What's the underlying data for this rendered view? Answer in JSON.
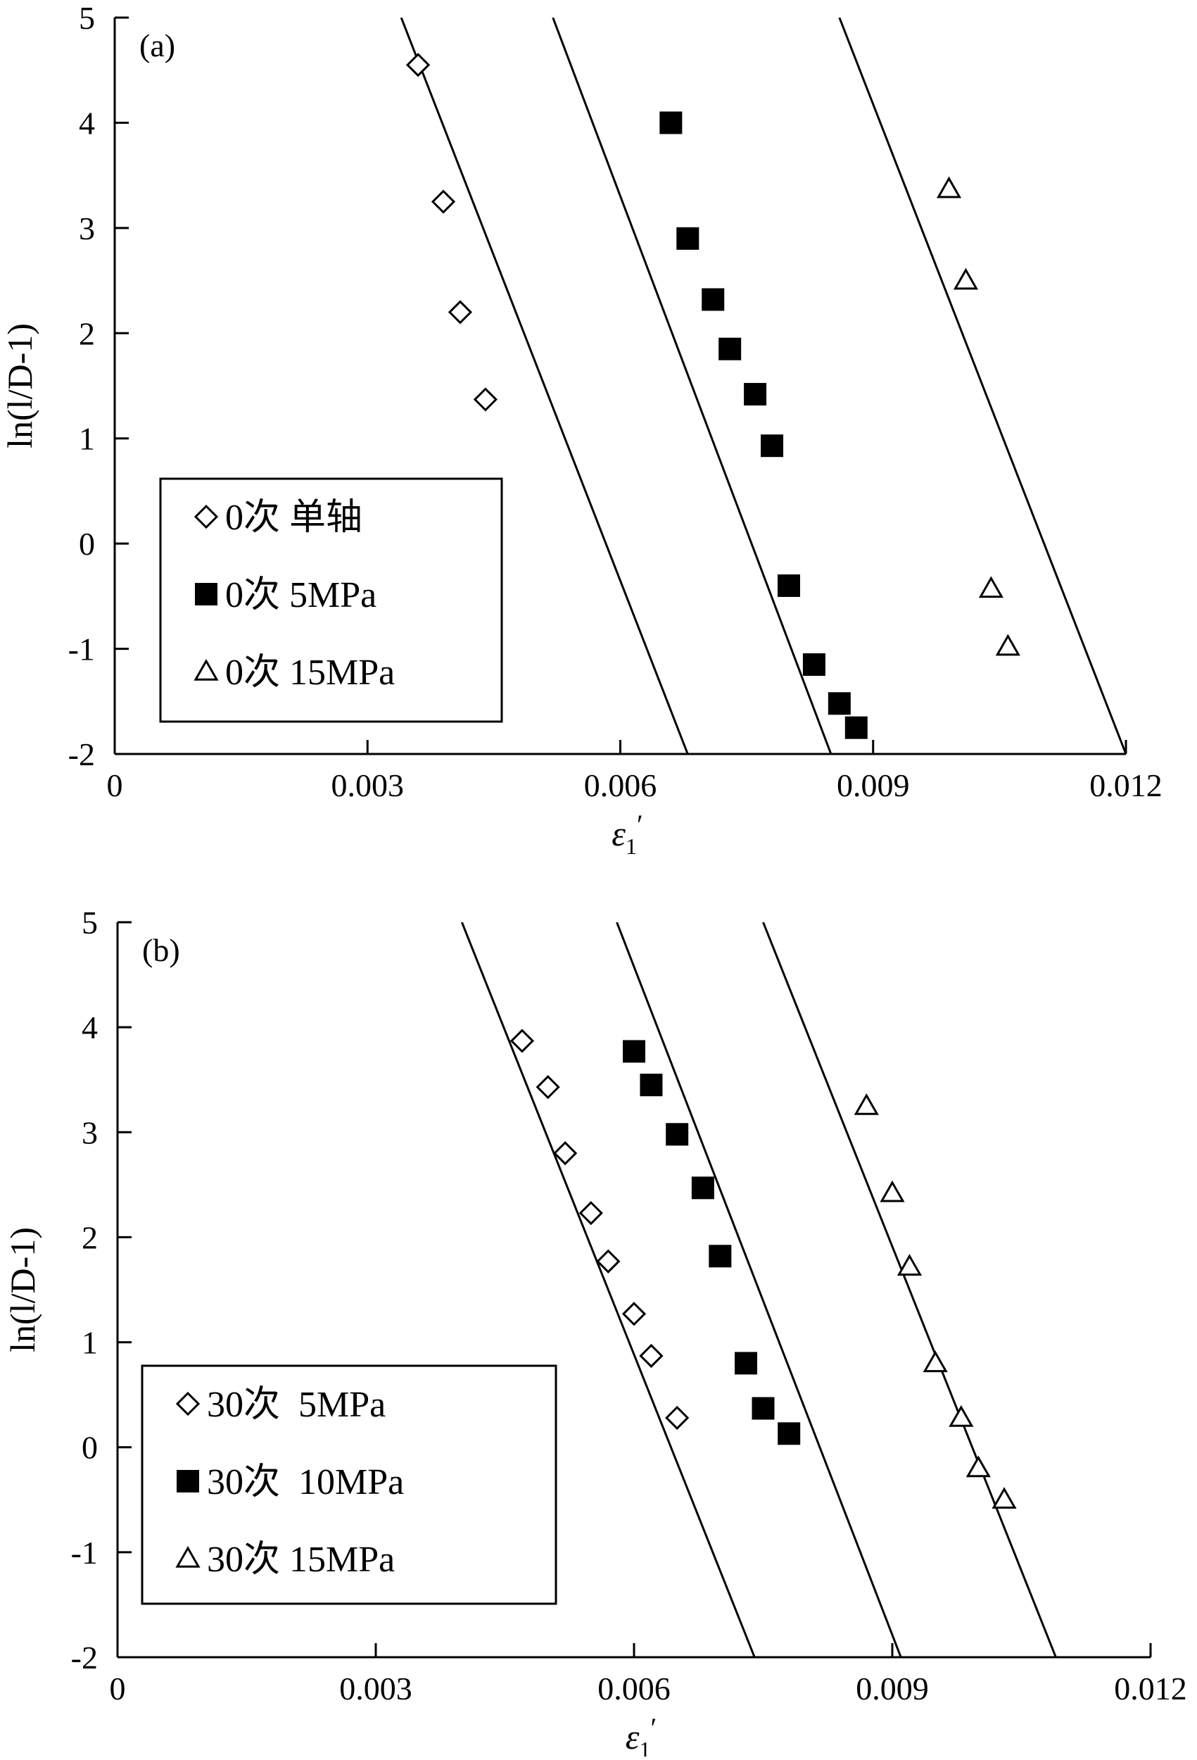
{
  "chart_data": [
    {
      "type": "scatter",
      "panel_label": "(a)",
      "xlabel_symbol": "ε",
      "xlabel_subscript": "1",
      "xlabel_prime": "′",
      "ylabel": "ln(l/D-1)",
      "xlim": [
        0,
        0.012
      ],
      "ylim": [
        -2,
        5
      ],
      "x_ticks": [
        0,
        0.003,
        0.006,
        0.009,
        0.012
      ],
      "x_tick_labels": [
        "0",
        "0.003",
        "0.006",
        "0.009",
        "0.012"
      ],
      "y_ticks": [
        -2,
        -1,
        0,
        1,
        2,
        3,
        4,
        5
      ],
      "y_tick_labels": [
        "-2",
        "-1",
        "0",
        "1",
        "2",
        "3",
        "4",
        "5"
      ],
      "grid": false,
      "legend_position": "bottom-left",
      "series": [
        {
          "name": "0次 单轴",
          "marker": "diamond-open",
          "points": [
            [
              0.0036,
              4.55
            ],
            [
              0.0039,
              3.25
            ],
            [
              0.0041,
              2.2
            ],
            [
              0.0044,
              1.37
            ]
          ],
          "fit_line": [
            [
              0.0034,
              5
            ],
            [
              0.0068,
              -2
            ]
          ]
        },
        {
          "name": "0次 5MPa",
          "marker": "square-filled",
          "points": [
            [
              0.0066,
              4.0
            ],
            [
              0.0068,
              2.9
            ],
            [
              0.0071,
              2.32
            ],
            [
              0.0073,
              1.85
            ],
            [
              0.0076,
              1.42
            ],
            [
              0.0078,
              0.93
            ],
            [
              0.008,
              -0.4
            ],
            [
              0.0083,
              -1.15
            ],
            [
              0.0086,
              -1.52
            ],
            [
              0.0088,
              -1.75
            ]
          ],
          "fit_line": [
            [
              0.0052,
              5
            ],
            [
              0.0085,
              -2
            ]
          ]
        },
        {
          "name": "0次 15MPa",
          "marker": "triangle-open",
          "points": [
            [
              0.0099,
              3.37
            ],
            [
              0.0101,
              2.5
            ],
            [
              0.0104,
              -0.43
            ],
            [
              0.0106,
              -0.98
            ]
          ],
          "fit_line": [
            [
              0.0086,
              5
            ],
            [
              0.012,
              -2
            ]
          ]
        }
      ]
    },
    {
      "type": "scatter",
      "panel_label": "(b)",
      "xlabel_symbol": "ε",
      "xlabel_subscript": "1",
      "xlabel_prime": "′",
      "ylabel": "ln(l/D-1)",
      "xlim": [
        0,
        0.012
      ],
      "ylim": [
        -2,
        5
      ],
      "x_ticks": [
        0,
        0.003,
        0.006,
        0.009,
        0.012
      ],
      "x_tick_labels": [
        "0",
        "0.003",
        "0.006",
        "0.009",
        "0.012"
      ],
      "y_ticks": [
        -2,
        -1,
        0,
        1,
        2,
        3,
        4,
        5
      ],
      "y_tick_labels": [
        "-2",
        "-1",
        "0",
        "1",
        "2",
        "3",
        "4",
        "5"
      ],
      "grid": false,
      "legend_position": "bottom-left",
      "series": [
        {
          "name": "30次  5MPa",
          "marker": "diamond-open",
          "points": [
            [
              0.0047,
              3.87
            ],
            [
              0.005,
              3.43
            ],
            [
              0.0052,
              2.8
            ],
            [
              0.0055,
              2.23
            ],
            [
              0.0057,
              1.77
            ],
            [
              0.006,
              1.27
            ],
            [
              0.0062,
              0.87
            ],
            [
              0.0065,
              0.28
            ]
          ],
          "fit_line": [
            [
              0.004,
              5
            ],
            [
              0.0074,
              -2
            ]
          ]
        },
        {
          "name": "30次  10MPa",
          "marker": "square-filled",
          "points": [
            [
              0.006,
              3.77
            ],
            [
              0.0062,
              3.45
            ],
            [
              0.0065,
              2.98
            ],
            [
              0.0068,
              2.47
            ],
            [
              0.007,
              1.82
            ],
            [
              0.0073,
              0.8
            ],
            [
              0.0075,
              0.37
            ],
            [
              0.0078,
              0.13
            ]
          ],
          "fit_line": [
            [
              0.0058,
              5
            ],
            [
              0.0091,
              -2
            ]
          ]
        },
        {
          "name": "30次 15MPa",
          "marker": "triangle-open",
          "points": [
            [
              0.0087,
              3.25
            ],
            [
              0.009,
              2.42
            ],
            [
              0.0092,
              1.72
            ],
            [
              0.0095,
              0.8
            ],
            [
              0.0098,
              0.28
            ],
            [
              0.01,
              -0.2
            ],
            [
              0.0103,
              -0.5
            ]
          ],
          "fit_line": [
            [
              0.0075,
              5
            ],
            [
              0.0109,
              -2
            ]
          ]
        }
      ]
    }
  ]
}
